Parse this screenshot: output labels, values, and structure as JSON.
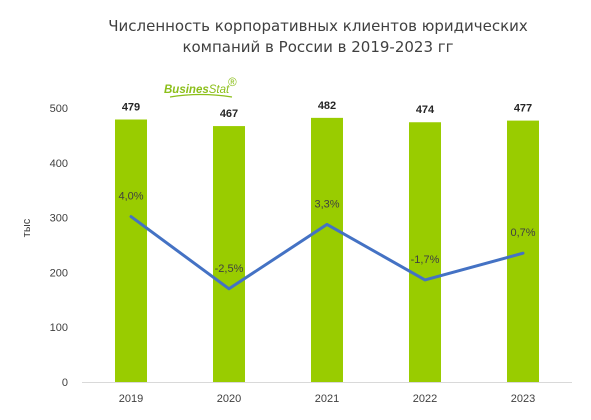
{
  "colors": {
    "bar": "#99cc00",
    "line": "#4472c4",
    "axis": "#d9d9d9",
    "logo": "#8cbf1a"
  },
  "logo": {
    "part1": "Busines",
    "part2": "Stat",
    "mark": "®"
  },
  "chart_data": {
    "type": "bar",
    "title_lines": [
      "Численность корпоративных клиентов юридических",
      "компаний в России в  2019-2023 гг"
    ],
    "ylabel": "тыс",
    "categories": [
      "2019",
      "2020",
      "2021",
      "2022",
      "2023"
    ],
    "ylim": [
      0,
      500
    ],
    "yticks": [
      0,
      100,
      200,
      300,
      400,
      500
    ],
    "series": [
      {
        "type": "bar",
        "values": [
          479,
          467,
          482,
          474,
          477
        ],
        "labels": [
          "479",
          "467",
          "482",
          "474",
          "477"
        ]
      },
      {
        "type": "line",
        "values": [
          4.0,
          -2.5,
          3.3,
          -1.7,
          0.7
        ],
        "labels": [
          "4,0%",
          "-2,5%",
          "3,3%",
          "-1,7%",
          "0,7%"
        ]
      }
    ],
    "grid": false,
    "legend": "none"
  }
}
